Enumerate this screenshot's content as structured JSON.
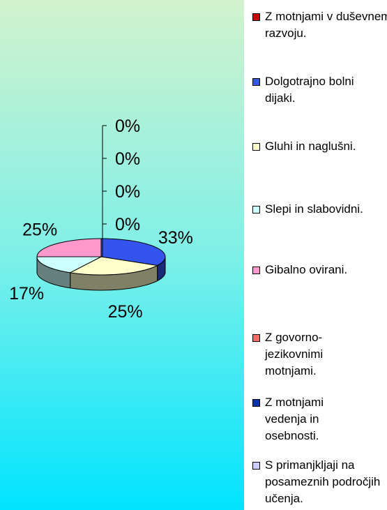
{
  "chart_data": {
    "type": "pie3d",
    "categories": [
      "Z motnjami v duševnem razvoju.",
      "Dolgotrajno bolni dijaki.",
      "Gluhi in naglušni.",
      "Slepi in slabovidni.",
      "Gibalno ovirani.",
      "Z govorno-jezikovnimi motnjami.",
      "Z motnjami vedenja in osebnosti.",
      "S primanjkljaji na posameznih področjih učenja."
    ],
    "values": [
      0,
      33,
      25,
      17,
      25,
      0,
      0,
      0
    ],
    "value_labels": [
      "0%",
      "33%",
      "25%",
      "17%",
      "25%",
      "0%",
      "0%",
      "0%"
    ],
    "colors": [
      "#cc0000",
      "#3355ee",
      "#ffffcc",
      "#ccffff",
      "#ff99cc",
      "#ff6666",
      "#0033aa",
      "#ccccff"
    ],
    "legend": "right"
  }
}
